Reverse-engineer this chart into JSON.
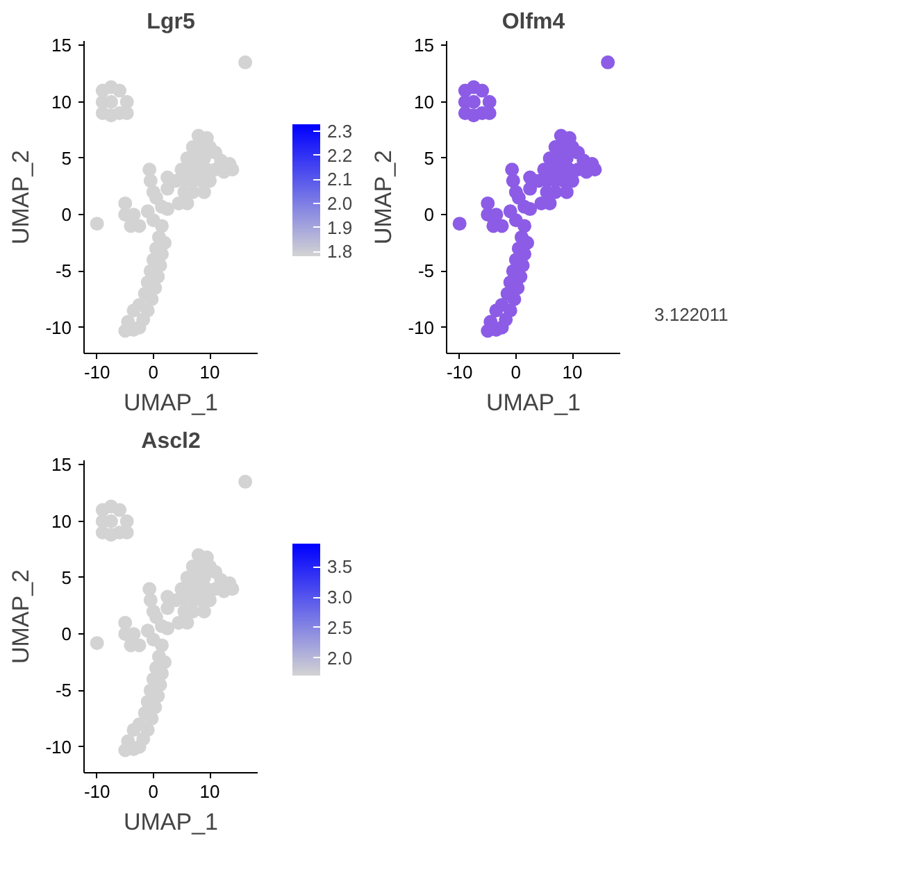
{
  "chart_data": [
    {
      "type": "scatter",
      "title": "Lgr5",
      "xlabel": "UMAP_1",
      "ylabel": "UMAP_2",
      "xlim": [
        -12.3,
        18.5
      ],
      "ylim": [
        -12.3,
        15.4
      ],
      "xticks": [
        -10,
        0,
        10
      ],
      "yticks": [
        -10,
        -5,
        0,
        5,
        10,
        15
      ],
      "grid": false,
      "clim": [
        1.78,
        2.33
      ],
      "cticks": [
        {
          "value": 1.8,
          "label": "1.8"
        },
        {
          "value": 1.9,
          "label": "1.9"
        },
        {
          "value": 2.0,
          "label": "2.0"
        },
        {
          "value": 2.1,
          "label": "2.1"
        },
        {
          "value": 2.2,
          "label": "2.2"
        },
        {
          "value": 2.3,
          "label": "2.3"
        }
      ],
      "series": [
        {
          "color": "#d3d3d3",
          "x": [
            -9,
            -7.5,
            -6,
            -9,
            -7.5,
            -4.7,
            -9,
            -7.5,
            -6,
            -4.7,
            16.3,
            -10,
            8,
            9.5,
            7,
            8.5,
            10,
            11,
            6,
            7.5,
            9,
            12,
            13.5,
            14,
            5,
            6.5,
            8,
            9.5,
            11,
            12.5,
            4,
            5.5,
            7,
            8.5,
            10,
            5.5,
            7,
            9,
            4.5,
            6,
            2.5,
            -0.7,
            -0.5,
            0,
            0.5,
            2.5,
            2.5,
            1.5,
            -5,
            -5,
            -3.5,
            -1,
            -4,
            -2.5,
            0,
            1.5,
            1,
            2,
            0.5,
            1.5,
            0,
            1.2,
            -0.5,
            0.8,
            -1,
            0.3,
            -1.5,
            -0.3,
            -2.5,
            -1,
            -3.5,
            -4.5,
            -1.8,
            -5,
            -3.5,
            -2.5
          ],
          "values": [
            11,
            11.3,
            11,
            10,
            10,
            10,
            9,
            8.8,
            9,
            9,
            13.5,
            -0.8,
            7,
            6.8,
            6,
            6,
            6,
            5.5,
            5,
            5,
            5,
            4.8,
            4.5,
            4,
            4,
            4,
            4,
            4,
            4,
            3.8,
            3,
            3,
            3,
            3,
            3,
            2,
            2,
            2,
            1,
            1,
            0.5,
            4,
            3,
            2,
            1.5,
            3.3,
            2.3,
            0.7,
            1,
            0,
            0,
            0.3,
            -1,
            -1,
            -0.5,
            -1,
            -2,
            -2.5,
            -3,
            -3.5,
            -4,
            -4.5,
            -5,
            -5.5,
            -6,
            -6.5,
            -7,
            -7.5,
            -8,
            -8.5,
            -8.5,
            -9.5,
            -9.3,
            -10.3,
            -10.2,
            -10
          ]
        }
      ]
    },
    {
      "type": "scatter",
      "title": "Olfm4",
      "xlabel": "UMAP_1",
      "ylabel": "UMAP_2",
      "xlim": [
        -12.3,
        18.5
      ],
      "ylim": [
        -12.3,
        15.4
      ],
      "xticks": [
        -10,
        0,
        10
      ],
      "yticks": [
        -10,
        -5,
        0,
        5,
        10,
        15
      ],
      "grid": false,
      "legend": "right",
      "series": [
        {
          "name": "3.122011",
          "color": "#8c5ce6",
          "x": [
            -9,
            -7.5,
            -6,
            -9,
            -7.5,
            -4.7,
            -9,
            -7.5,
            -6,
            -4.7,
            16.3,
            -10,
            8,
            9.5,
            7,
            8.5,
            10,
            11,
            6,
            7.5,
            9,
            12,
            13.5,
            14,
            5,
            6.5,
            8,
            9.5,
            11,
            12.5,
            4,
            5.5,
            7,
            8.5,
            10,
            5.5,
            7,
            9,
            4.5,
            6,
            2.5,
            -0.7,
            -0.5,
            0,
            0.5,
            2.5,
            2.5,
            1.5,
            -5,
            -5,
            -3.5,
            -1,
            -4,
            -2.5,
            0,
            1.5,
            1,
            2,
            0.5,
            1.5,
            0,
            1.2,
            -0.5,
            0.8,
            -1,
            0.3,
            -1.5,
            -0.3,
            -2.5,
            -1,
            -3.5,
            -4.5,
            -1.8,
            -5,
            -3.5,
            -2.5
          ],
          "values": [
            11,
            11.3,
            11,
            10,
            10,
            10,
            9,
            8.8,
            9,
            9,
            13.5,
            -0.8,
            7,
            6.8,
            6,
            6,
            6,
            5.5,
            5,
            5,
            5,
            4.8,
            4.5,
            4,
            4,
            4,
            4,
            4,
            4,
            3.8,
            3,
            3,
            3,
            3,
            3,
            2,
            2,
            2,
            1,
            1,
            0.5,
            4,
            3,
            2,
            1.5,
            3.3,
            2.3,
            0.7,
            1,
            0,
            0,
            0.3,
            -1,
            -1,
            -0.5,
            -1,
            -2,
            -2.5,
            -3,
            -3.5,
            -4,
            -4.5,
            -5,
            -5.5,
            -6,
            -6.5,
            -7,
            -7.5,
            -8,
            -8.5,
            -8.5,
            -9.5,
            -9.3,
            -10.3,
            -10.2,
            -10
          ]
        }
      ]
    },
    {
      "type": "scatter",
      "title": "Ascl2",
      "xlabel": "UMAP_1",
      "ylabel": "UMAP_2",
      "xlim": [
        -12.3,
        18.5
      ],
      "ylim": [
        -12.3,
        15.4
      ],
      "xticks": [
        -10,
        0,
        10
      ],
      "yticks": [
        -10,
        -5,
        0,
        5,
        10,
        15
      ],
      "grid": false,
      "clim": [
        1.71,
        3.88
      ],
      "cticks": [
        {
          "value": 2.0,
          "label": "2.0"
        },
        {
          "value": 2.5,
          "label": "2.5"
        },
        {
          "value": 3.0,
          "label": "3.0"
        },
        {
          "value": 3.5,
          "label": "3.5"
        }
      ],
      "series": [
        {
          "color": "#d3d3d3",
          "x": [
            -9,
            -7.5,
            -6,
            -9,
            -7.5,
            -4.7,
            -9,
            -7.5,
            -6,
            -4.7,
            16.3,
            -10,
            8,
            9.5,
            7,
            8.5,
            10,
            11,
            6,
            7.5,
            9,
            12,
            13.5,
            14,
            5,
            6.5,
            8,
            9.5,
            11,
            12.5,
            4,
            5.5,
            7,
            8.5,
            10,
            5.5,
            7,
            9,
            4.5,
            6,
            2.5,
            -0.7,
            -0.5,
            0,
            0.5,
            2.5,
            2.5,
            1.5,
            -5,
            -5,
            -3.5,
            -1,
            -4,
            -2.5,
            0,
            1.5,
            1,
            2,
            0.5,
            1.5,
            0,
            1.2,
            -0.5,
            0.8,
            -1,
            0.3,
            -1.5,
            -0.3,
            -2.5,
            -1,
            -3.5,
            -4.5,
            -1.8,
            -5,
            -3.5,
            -2.5
          ],
          "values": [
            11,
            11.3,
            11,
            10,
            10,
            10,
            9,
            8.8,
            9,
            9,
            13.5,
            -0.8,
            7,
            6.8,
            6,
            6,
            6,
            5.5,
            5,
            5,
            5,
            4.8,
            4.5,
            4,
            4,
            4,
            4,
            4,
            4,
            3.8,
            3,
            3,
            3,
            3,
            3,
            2,
            2,
            2,
            1,
            1,
            0.5,
            4,
            3,
            2,
            1.5,
            3.3,
            2.3,
            0.7,
            1,
            0,
            0,
            0.3,
            -1,
            -1,
            -0.5,
            -1,
            -2,
            -2.5,
            -3,
            -3.5,
            -4,
            -4.5,
            -5,
            -5.5,
            -6,
            -6.5,
            -7,
            -7.5,
            -8,
            -8.5,
            -8.5,
            -9.5,
            -9.3,
            -10.3,
            -10.2,
            -10
          ]
        }
      ]
    }
  ]
}
